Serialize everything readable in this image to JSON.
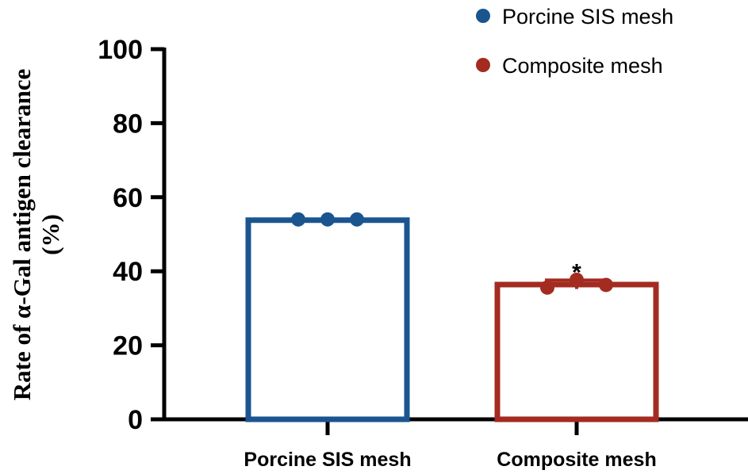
{
  "chart_data": {
    "type": "bar",
    "categories": [
      "Porcine SIS mesh",
      "Composite mesh"
    ],
    "series": [
      {
        "name": "Porcine SIS mesh",
        "color": "#1a5590",
        "value": 53.8,
        "points": [
          54.0,
          54.0,
          54.0
        ],
        "error": 0.2
      },
      {
        "name": "Composite mesh",
        "color": "#a32b20",
        "value": 36.4,
        "points": [
          35.6,
          37.7,
          36.3
        ],
        "error": 1.2
      }
    ],
    "ylabel_line1": "Rate of α-Gal antigen clearance",
    "ylabel_line2": "(%)",
    "xlabel": "",
    "title": "",
    "ylim": [
      0,
      100
    ],
    "yticks": [
      0,
      20,
      40,
      60,
      80,
      100
    ],
    "annotations": [
      {
        "text": "*",
        "category": "Composite mesh"
      }
    ],
    "legend": {
      "placement": "top-right",
      "entries": [
        {
          "label": "Porcine SIS mesh",
          "color": "#1a5590"
        },
        {
          "label": "Composite mesh",
          "color": "#a32b20"
        }
      ]
    }
  }
}
